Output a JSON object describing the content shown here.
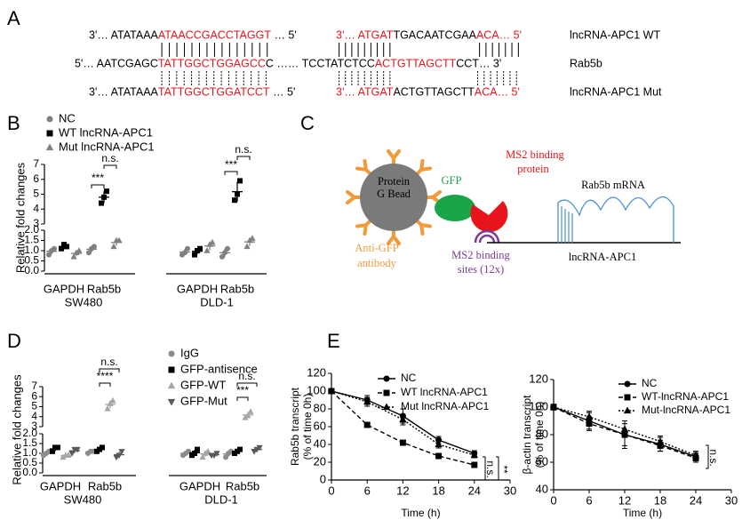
{
  "panel_labels": [
    "A",
    "B",
    "C",
    "D",
    "E"
  ],
  "figure_a": {
    "rows": [
      {
        "parts": [
          "3'… ATATAAA",
          "ATAACCGACCTAGGT",
          " … 5'",
          "3'… ATGAT",
          "TGACAATCGAA",
          "ACA… 5'"
        ],
        "label": "lncRNA-APC1 WT"
      },
      {
        "parts": [
          "5'… AATCGAGC",
          "TATTGGCTGGAGCC",
          "C …… TCCTATCTCC",
          "ACTGTTAGCTT",
          "CCT… 3'"
        ],
        "label": "Rab5b"
      },
      {
        "parts": [
          "3'… ATATAAA",
          "TATTGGCTGGATCCT",
          " … 5'",
          "3'… ATGAT",
          "ACTGTTAGCTT",
          "ACA… 5'"
        ],
        "label": "lncRNA-APC1 Mut"
      }
    ]
  },
  "diagram": {
    "labels": [
      "Protein",
      "G Bead",
      "GFP",
      "MS2 binding",
      "protein",
      "Rab5b mRNA",
      "Anti-GFP",
      "antibody",
      "MS2 binding",
      "sites (12x)",
      "lncRNA-APC1"
    ]
  },
  "chart_data": [
    {
      "type": "dot",
      "y_label": "Relative fold changes",
      "categories": [
        "GAPDH",
        "Rab5b",
        "GAPDH",
        "Rab5b"
      ],
      "groups": [
        "SW480",
        "DLD-1"
      ],
      "y_sections": [
        {
          "ylim": [
            0,
            2
          ],
          "yticks": [
            {
              "value": 0,
              "label": "0.0"
            },
            {
              "value": 0.5,
              "label": "0.5"
            },
            {
              "value": 1,
              "label": "1.0"
            },
            {
              "value": 1.5,
              "label": "1.5"
            },
            {
              "value": 2,
              "label": "2.0"
            }
          ]
        },
        {
          "ylim": [
            3,
            7
          ],
          "yticks": [
            3,
            4,
            5,
            6,
            7
          ]
        }
      ],
      "series": [
        {
          "name": "NC",
          "color": "#808080",
          "marker": "circle",
          "points": [
            [
              0.8,
              1.0,
              1.1
            ],
            [
              0.9,
              1.1,
              1.2
            ],
            [
              0.8,
              0.9,
              1.1
            ],
            [
              0.7,
              0.9,
              1.1
            ]
          ],
          "means": [
            0.97,
            1.07,
            0.93,
            0.9
          ],
          "sds": [
            0.15,
            0.15,
            0.15,
            0.2
          ]
        },
        {
          "name": "WT lncRNA-APC1",
          "color": "#000000",
          "marker": "square",
          "points": [
            [
              1.1,
              1.3,
              1.2
            ],
            [
              4.4,
              4.8,
              5.2
            ],
            [
              0.8,
              1.0,
              1.1
            ],
            [
              4.6,
              5.0,
              5.9
            ]
          ],
          "means": [
            1.2,
            4.8,
            0.97,
            5.17
          ],
          "sds": [
            0.1,
            0.4,
            0.15,
            0.67
          ]
        },
        {
          "name": "Mut lncRNA-APC1",
          "color": "#808080",
          "marker": "triangle",
          "points": [
            [
              0.7,
              0.9,
              1.0
            ],
            [
              1.2,
              1.5,
              1.5
            ],
            [
              1.0,
              1.3,
              1.4
            ],
            [
              1.2,
              1.5,
              1.6
            ]
          ],
          "means": [
            0.87,
            1.4,
            1.23,
            1.43
          ],
          "sds": [
            0.15,
            0.17,
            0.21,
            0.21
          ]
        }
      ],
      "annotations": [
        "n.s.",
        "***",
        "n.s.",
        "***"
      ]
    },
    {
      "type": "dot",
      "y_label": "Relative fold changes",
      "categories": [
        "GAPDH",
        "Rab5b",
        "GAPDH",
        "Rab5b"
      ],
      "groups": [
        "SW480",
        "DLD-1"
      ],
      "y_sections": [
        {
          "ylim": [
            0,
            2
          ],
          "yticks": [
            {
              "value": 0,
              "label": "0.0"
            },
            {
              "value": 0.5,
              "label": "0.5"
            },
            {
              "value": 1,
              "label": "1.0"
            },
            {
              "value": 1.5,
              "label": "1.5"
            },
            {
              "value": 2,
              "label": "2.0"
            }
          ]
        },
        {
          "ylim": [
            3,
            7
          ],
          "yticks": [
            3,
            4,
            5,
            6,
            7
          ]
        }
      ],
      "series": [
        {
          "name": "IgG",
          "color": "#8c8c8c",
          "marker": "circle",
          "points": [
            [
              0.9,
              1.0,
              1.1
            ],
            [
              1.0,
              1.1,
              1.1
            ],
            [
              0.9,
              1.0,
              1.1
            ],
            [
              0.8,
              1.0,
              1.1
            ]
          ],
          "means": [
            1.0,
            1.07,
            1.0,
            0.97
          ],
          "sds": [
            0.1,
            0.06,
            0.1,
            0.15
          ]
        },
        {
          "name": "GFP-antisence",
          "color": "#000000",
          "marker": "square",
          "points": [
            [
              1.1,
              1.3,
              1.3
            ],
            [
              1.1,
              1.2,
              1.3
            ],
            [
              0.9,
              1.0,
              1.2
            ],
            [
              1.0,
              1.1,
              1.2
            ]
          ],
          "means": [
            1.23,
            1.2,
            1.03,
            1.1
          ],
          "sds": [
            0.12,
            0.1,
            0.15,
            0.1
          ]
        },
        {
          "name": "GFP-WT",
          "color": "#a6a6a6",
          "marker": "triangle",
          "points": [
            [
              0.8,
              0.9,
              0.9
            ],
            [
              4.8,
              5.3,
              5.6
            ],
            [
              0.8,
              1.0,
              1.1
            ],
            [
              3.9,
              4.1,
              4.5
            ]
          ],
          "means": [
            0.87,
            5.23,
            0.97,
            4.17
          ],
          "sds": [
            0.06,
            0.4,
            0.15,
            0.31
          ]
        },
        {
          "name": "GFP-Mut",
          "color": "#595959",
          "marker": "triangle-down",
          "points": [
            [
              1.0,
              1.2,
              1.2
            ],
            [
              0.8,
              0.9,
              1.1
            ],
            [
              0.9,
              0.9,
              1.0
            ],
            [
              1.1,
              1.2,
              1.3
            ]
          ],
          "means": [
            1.13,
            0.93,
            0.93,
            1.2
          ],
          "sds": [
            0.12,
            0.15,
            0.06,
            0.1
          ]
        }
      ],
      "annotations": [
        "n.s.",
        "****",
        "n.s.",
        "***"
      ]
    },
    {
      "type": "line",
      "x": [
        0,
        6,
        12,
        18,
        24
      ],
      "xlim": [
        0,
        30
      ],
      "xticks": [
        0,
        6,
        12,
        18,
        24,
        30
      ],
      "ylim": [
        0,
        120
      ],
      "yticks": [
        0,
        20,
        40,
        60,
        80,
        100,
        120
      ],
      "x_label": "Time (h)",
      "y_label": [
        "Rab5b transcript",
        "(% of time 0h)"
      ],
      "series": [
        {
          "name": "NC",
          "color": "#000000",
          "style": "solid",
          "marker": "circle",
          "values": [
            100,
            90,
            72,
            45,
            30
          ],
          "errors": [
            3,
            5,
            8,
            4,
            3
          ]
        },
        {
          "name": "WT lncRNA-APC1",
          "color": "#000000",
          "style": "dashed",
          "marker": "square",
          "values": [
            100,
            62,
            42,
            27,
            17
          ],
          "errors": [
            2,
            2,
            3,
            2,
            2
          ]
        },
        {
          "name": "Mut lncRNA-APC1",
          "color": "#000000",
          "style": "dotted",
          "marker": "triangle",
          "values": [
            100,
            88,
            68,
            40,
            28
          ],
          "errors": [
            2,
            5,
            6,
            4,
            3
          ]
        }
      ],
      "annotations": [
        "n.s.",
        "**"
      ]
    },
    {
      "type": "line",
      "x": [
        0,
        6,
        12,
        18,
        24
      ],
      "xlim": [
        0,
        30
      ],
      "xticks": [
        0,
        6,
        12,
        18,
        24,
        30
      ],
      "ylim": [
        40,
        120
      ],
      "yticks": [
        40,
        60,
        80,
        100,
        120
      ],
      "x_label": "Time (h)",
      "y_label": [
        "β-actin transcript",
        "(% of time 0h)"
      ],
      "series": [
        {
          "name": "NC",
          "color": "#000000",
          "style": "solid",
          "marker": "circle",
          "values": [
            100,
            90,
            80,
            73,
            64
          ],
          "errors": [
            2,
            6,
            10,
            5,
            3
          ]
        },
        {
          "name": "WT-lncRNA-APC1",
          "color": "#000000",
          "style": "dashed",
          "marker": "square",
          "values": [
            100,
            88,
            80,
            72,
            63
          ],
          "errors": [
            2,
            5,
            8,
            4,
            3
          ]
        },
        {
          "name": "Mut-lncRNA-APC1",
          "color": "#000000",
          "style": "dotted",
          "marker": "triangle",
          "values": [
            100,
            93,
            84,
            75,
            65
          ],
          "errors": [
            2,
            4,
            6,
            4,
            3
          ]
        }
      ],
      "annotations": [
        "n.s."
      ]
    }
  ]
}
